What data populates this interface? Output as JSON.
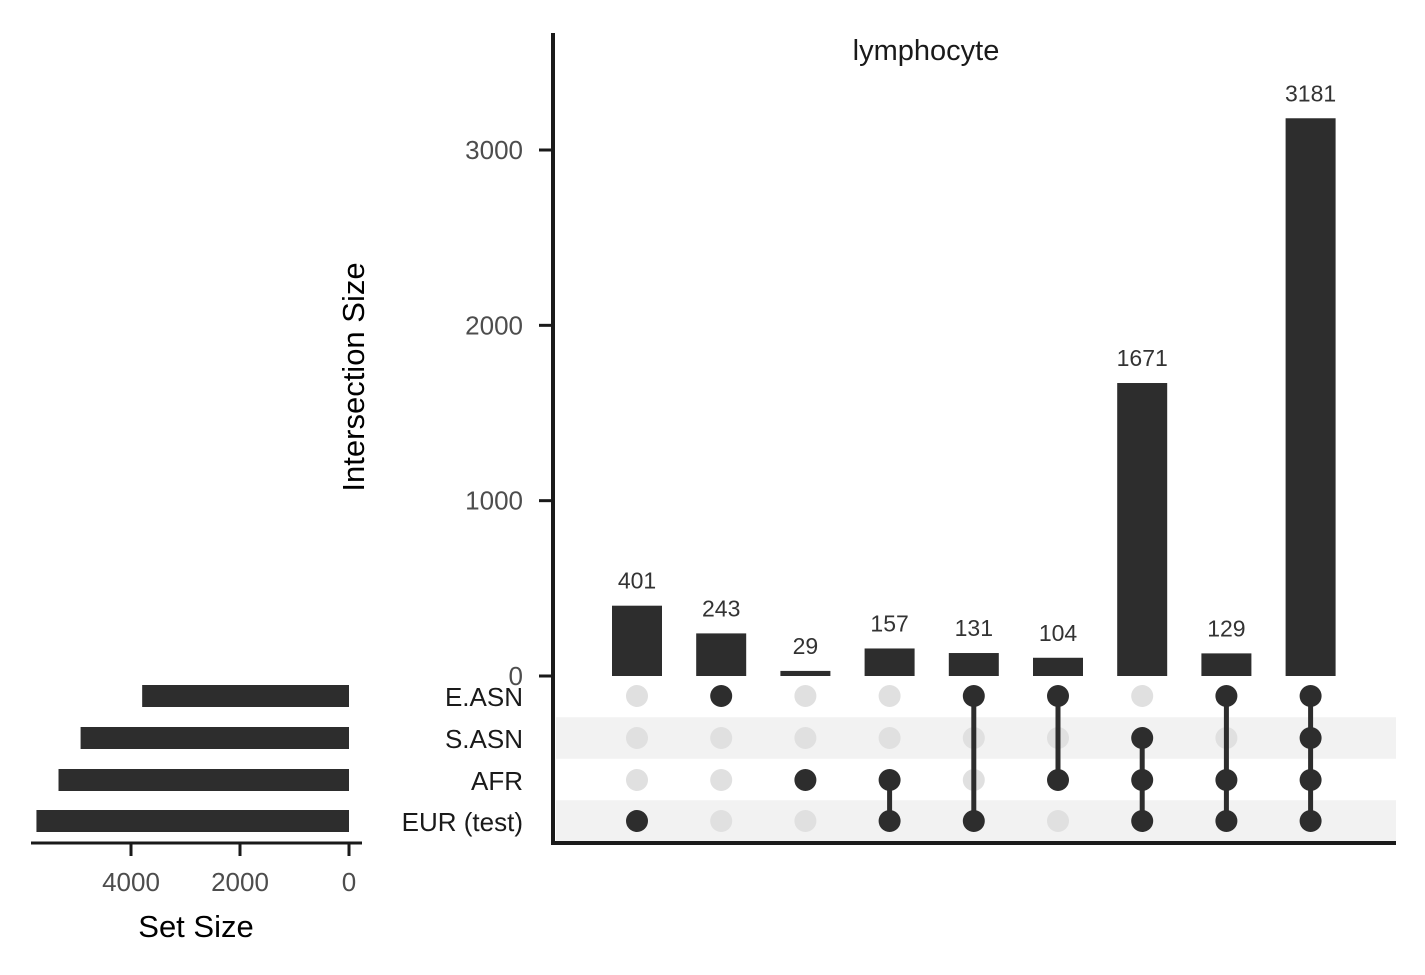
{
  "chart_data": {
    "type": "bar",
    "title": "lymphocyte",
    "ylabel": "Intersection Size",
    "ylim": [
      0,
      3600
    ],
    "yticks": [
      "0",
      "1000",
      "2000",
      "3000"
    ],
    "sets": [
      "E.ASN",
      "S.ASN",
      "AFR",
      "EUR (test)"
    ],
    "intersections": [
      {
        "value": 401,
        "label": "401",
        "members": [
          "EUR (test)"
        ]
      },
      {
        "value": 243,
        "label": "243",
        "members": [
          "E.ASN"
        ]
      },
      {
        "value": 29,
        "label": "29",
        "members": [
          "AFR"
        ]
      },
      {
        "value": 157,
        "label": "157",
        "members": [
          "AFR",
          "EUR (test)"
        ]
      },
      {
        "value": 131,
        "label": "131",
        "members": [
          "E.ASN",
          "EUR (test)"
        ]
      },
      {
        "value": 104,
        "label": "104",
        "members": [
          "E.ASN",
          "AFR"
        ]
      },
      {
        "value": 1671,
        "label": "1671",
        "members": [
          "S.ASN",
          "AFR",
          "EUR (test)"
        ]
      },
      {
        "value": 129,
        "label": "129",
        "members": [
          "E.ASN",
          "AFR",
          "EUR (test)"
        ]
      },
      {
        "value": 3181,
        "label": "3181",
        "members": [
          "E.ASN",
          "S.ASN",
          "AFR",
          "EUR (test)"
        ]
      }
    ],
    "set_sizes": {
      "xlabel": "Set Size",
      "xlim": [
        0,
        5800
      ],
      "xticks": [
        "4000",
        "2000",
        "0"
      ],
      "values": [
        3795,
        4925,
        5330,
        5735
      ]
    },
    "colors": {
      "bar": "#2d2d2d",
      "dot_active": "#2d2d2d",
      "dot_inactive": "#e0e0e0",
      "stripe": "#f2f2f2",
      "axis": "#1a1a1a"
    }
  }
}
